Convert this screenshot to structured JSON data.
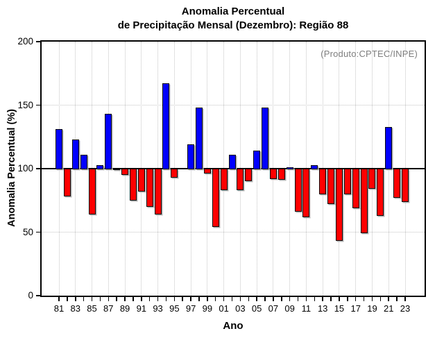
{
  "chart_data": {
    "type": "bar",
    "title_lines": [
      "Anomalia Percentual",
      "de Precipitação Mensal (Dezembro): Região 88"
    ],
    "xlabel": "Ano",
    "ylabel": "Anomalia Percentual (%)",
    "annotation": "(Produto:CPTEC/INPE)",
    "ylim": [
      0,
      200
    ],
    "yticks": [
      0,
      50,
      100,
      150,
      200
    ],
    "baseline": 100,
    "grid_h": [
      50,
      150
    ],
    "grid": "dotted light-gray, vertical every 2 years, horizontal at 50/150",
    "legend_position": "none",
    "categories": [
      "81",
      "82",
      "83",
      "84",
      "85",
      "86",
      "87",
      "88",
      "89",
      "90",
      "91",
      "92",
      "93",
      "94",
      "95",
      "96",
      "97",
      "98",
      "99",
      "00",
      "01",
      "02",
      "03",
      "04",
      "05",
      "06",
      "07",
      "08",
      "09",
      "10",
      "11",
      "12",
      "13",
      "14",
      "15",
      "16",
      "17",
      "18",
      "19",
      "20",
      "21",
      "22",
      "23"
    ],
    "x_tick_labels": [
      "81",
      "83",
      "85",
      "87",
      "89",
      "91",
      "93",
      "95",
      "97",
      "99",
      "01",
      "03",
      "05",
      "07",
      "09",
      "11",
      "13",
      "15",
      "17",
      "19",
      "21",
      "23"
    ],
    "values": [
      131,
      78,
      123,
      111,
      64,
      103,
      143,
      99,
      95,
      75,
      82,
      70,
      64,
      167,
      93,
      100,
      119,
      148,
      96,
      54,
      83,
      111,
      83,
      90,
      114,
      148,
      92,
      91,
      101,
      66,
      62,
      103,
      80,
      72,
      43,
      80,
      69,
      49,
      84,
      63,
      133,
      77,
      74
    ],
    "bar_color_above": "#0000ff",
    "bar_color_below": "#ff0000",
    "axis_color": "#000000",
    "annotation_color": "#7e7e7e"
  }
}
